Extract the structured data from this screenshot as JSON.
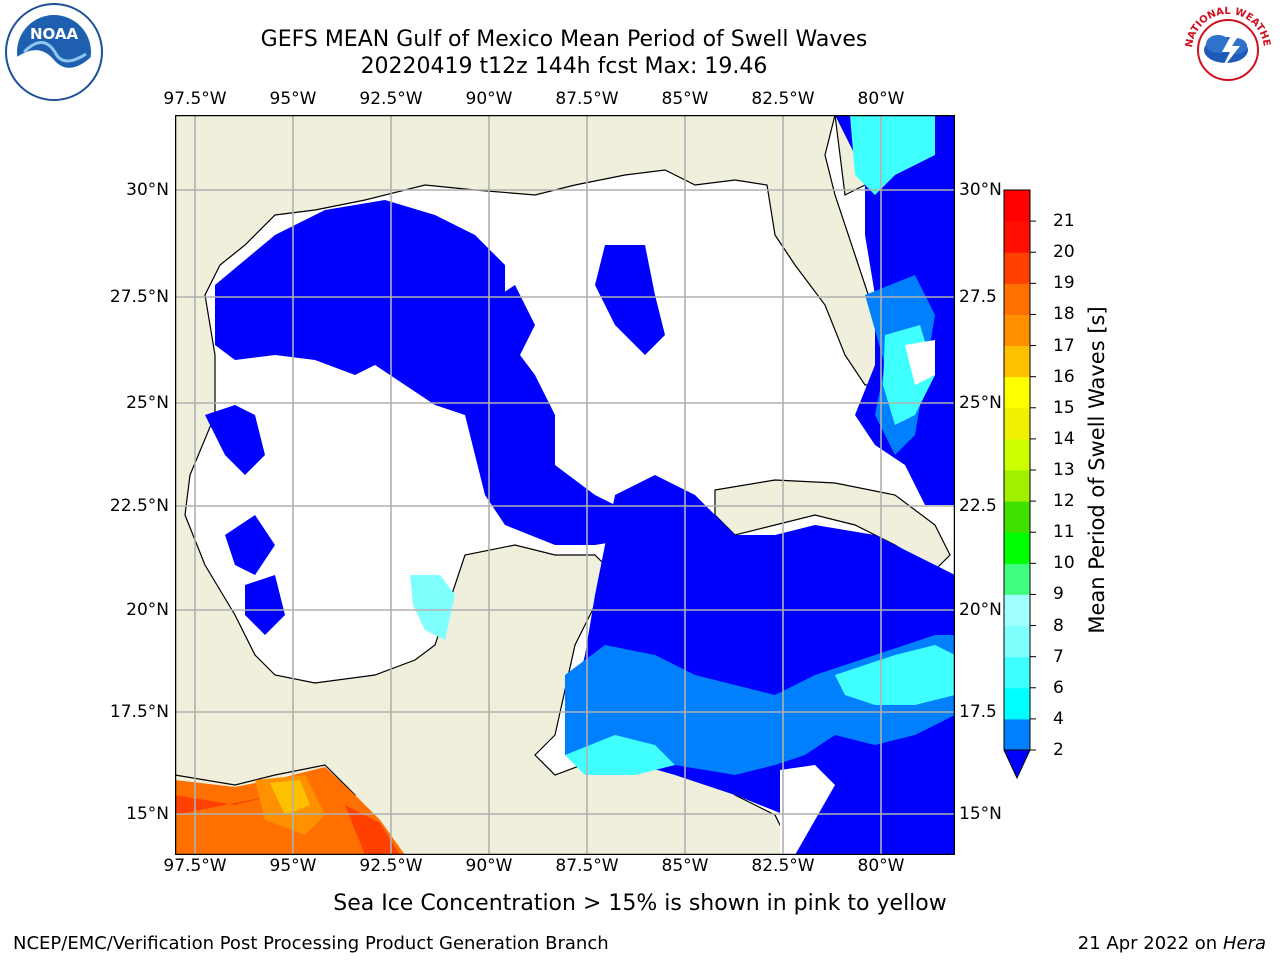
{
  "header": {
    "title_line1": "GEFS MEAN Gulf of Mexico Mean Period of Swell Waves",
    "title_line2": "20220419 t12z 144h fcst   Max: 19.46"
  },
  "map": {
    "lon_labels": [
      "97.5°W",
      "95°W",
      "92.5°W",
      "90°W",
      "87.5°W",
      "85°W",
      "82.5°W",
      "80°W"
    ],
    "lat_labels_left": [
      "30°N",
      "27.5°N",
      "25°N",
      "22.5°N",
      "20°N",
      "17.5°N",
      "15°N"
    ],
    "lat_labels_right": [
      "30°N",
      "27.5",
      "25°N",
      "22.5",
      "20°N",
      "17.5",
      "15°N"
    ],
    "colors": {
      "land": "#efefdc",
      "grid": "#b0b0b0",
      "coast": "#000000"
    }
  },
  "colorbar": {
    "title": "Mean Period of Swell Waves [s]",
    "ticks": [
      "2",
      "4",
      "6",
      "7",
      "8",
      "9",
      "10",
      "11",
      "12",
      "13",
      "14",
      "15",
      "16",
      "17",
      "18",
      "19",
      "20",
      "21"
    ],
    "colors": [
      "#0000ff",
      "#0080ff",
      "#00ffff",
      "#40ffff",
      "#80ffff",
      "#a0ffff",
      "#40ff80",
      "#00ff00",
      "#40e000",
      "#a0f000",
      "#ccff00",
      "#f0f000",
      "#ffff00",
      "#ffc000",
      "#ff9000",
      "#ff7000",
      "#ff4000",
      "#ff1000",
      "#ff0000"
    ]
  },
  "footer": {
    "note": "Sea Ice Concentration > 15% is shown in pink to yellow",
    "left": "NCEP/EMC/Verification Post Processing Product Generation Branch",
    "date": "21 Apr 2022 on ",
    "machine": "Hera"
  },
  "logos": {
    "left_text": "NOAA",
    "right_text": "NATIONAL WEATHER SERVICE"
  }
}
